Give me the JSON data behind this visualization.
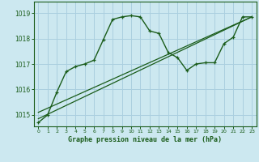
{
  "title": "Graphe pression niveau de la mer (hPa)",
  "background_color": "#cce8f0",
  "grid_color": "#aacfdf",
  "line_color": "#1a5c1a",
  "xlim": [
    -0.5,
    23.5
  ],
  "ylim": [
    1014.55,
    1019.45
  ],
  "yticks": [
    1015,
    1016,
    1017,
    1018,
    1019
  ],
  "xticks": [
    0,
    1,
    2,
    3,
    4,
    5,
    6,
    7,
    8,
    9,
    10,
    11,
    12,
    13,
    14,
    15,
    16,
    17,
    18,
    19,
    20,
    21,
    22,
    23
  ],
  "curve1_x": [
    0,
    1,
    2,
    3,
    4,
    5,
    6,
    7,
    8,
    9,
    10,
    11,
    12,
    13,
    14,
    15,
    16,
    17,
    18,
    19,
    20,
    21,
    22,
    23
  ],
  "curve1_y": [
    1014.7,
    1015.0,
    1015.9,
    1016.7,
    1016.9,
    1017.0,
    1017.15,
    1017.95,
    1018.75,
    1018.85,
    1018.9,
    1018.85,
    1018.3,
    1018.2,
    1017.45,
    1017.25,
    1016.75,
    1017.0,
    1017.05,
    1017.05,
    1017.8,
    1018.05,
    1018.85,
    1018.85
  ],
  "curve2_x": [
    0,
    23
  ],
  "curve2_y": [
    1015.1,
    1018.85
  ],
  "curve3_x": [
    0,
    23
  ],
  "curve3_y": [
    1014.85,
    1018.85
  ],
  "marker_x": [
    0,
    1,
    2,
    3,
    4,
    5,
    6,
    7,
    8,
    9,
    10,
    11,
    12,
    13,
    14,
    15,
    16,
    17,
    18,
    19,
    20,
    21,
    22,
    23
  ],
  "marker_y": [
    1014.7,
    1015.0,
    1015.9,
    1016.7,
    1016.9,
    1017.0,
    1017.15,
    1017.95,
    1018.75,
    1018.85,
    1018.9,
    1018.85,
    1018.3,
    1018.2,
    1017.45,
    1017.25,
    1016.75,
    1017.0,
    1017.05,
    1017.05,
    1017.8,
    1018.05,
    1018.85,
    1018.85
  ]
}
